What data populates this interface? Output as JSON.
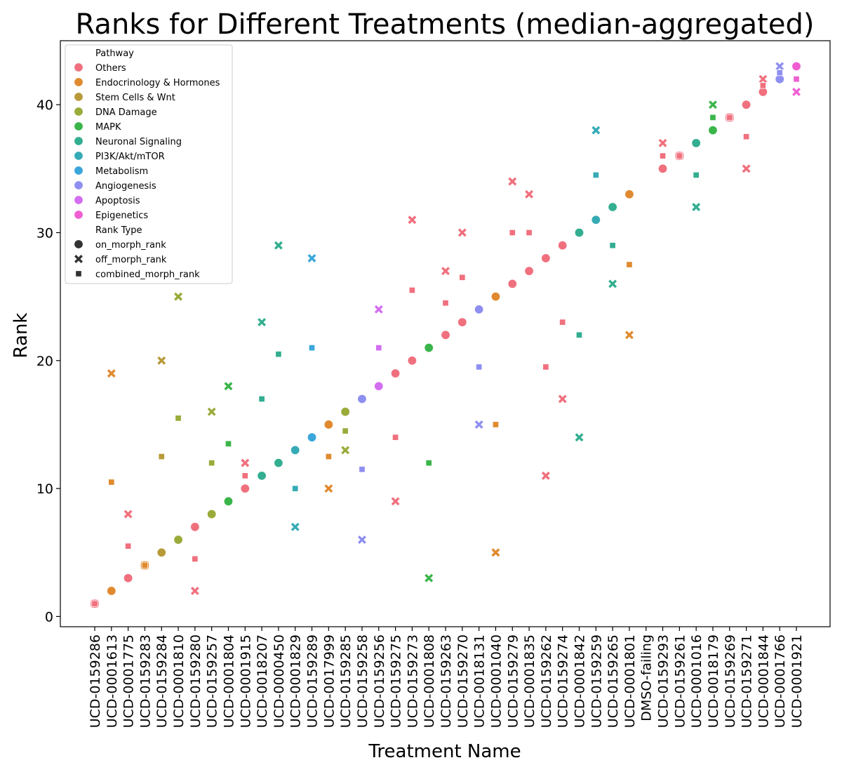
{
  "chart_data": {
    "type": "scatter",
    "title": "Ranks for Different Treatments (median-aggregated)",
    "xlabel": "Treatment Name",
    "ylabel": "Rank",
    "ylim": [
      -0.8,
      45
    ],
    "yticks": [
      0,
      10,
      20,
      30,
      40
    ],
    "grid": false,
    "legend_position": "top-left",
    "categories": [
      "UCD-0159286",
      "UCD-0001613",
      "UCD-0001775",
      "UCD-0159283",
      "UCD-0159284",
      "UCD-0001810",
      "UCD-0159280",
      "UCD-0159257",
      "UCD-0001804",
      "UCD-0001915",
      "UCD-0018207",
      "UCD-0000450",
      "UCD-0001829",
      "UCD-0159289",
      "UCD-0017999",
      "UCD-0159285",
      "UCD-0159258",
      "UCD-0159256",
      "UCD-0159275",
      "UCD-0159273",
      "UCD-0001808",
      "UCD-0159263",
      "UCD-0159270",
      "UCD-0018131",
      "UCD-0001040",
      "UCD-0159279",
      "UCD-0001835",
      "UCD-0159262",
      "UCD-0159274",
      "UCD-0001842",
      "UCD-0159259",
      "UCD-0159265",
      "UCD-0001801",
      "DMSO-failing",
      "UCD-0159293",
      "UCD-0159261",
      "UCD-0001016",
      "UCD-0018179",
      "UCD-0159269",
      "UCD-0159271",
      "UCD-0001844",
      "UCD-0001766",
      "UCD-0001921"
    ],
    "legend": {
      "hue_title": "Pathway",
      "style_title": "Rank Type",
      "pathways": [
        {
          "name": "Others",
          "color": "#f0707e"
        },
        {
          "name": "Endocrinology & Hormones",
          "color": "#e08a2f"
        },
        {
          "name": "Stem Cells &  Wnt",
          "color": "#b89a3a"
        },
        {
          "name": "DNA Damage",
          "color": "#9aab3a"
        },
        {
          "name": "MAPK",
          "color": "#3ab54a"
        },
        {
          "name": "Neuronal Signaling",
          "color": "#33ae90"
        },
        {
          "name": "PI3K/Akt/mTOR",
          "color": "#36abb5"
        },
        {
          "name": "Metabolism",
          "color": "#3aa6da"
        },
        {
          "name": "Angiogenesis",
          "color": "#8e8ff0"
        },
        {
          "name": "Apoptosis",
          "color": "#d36ef0"
        },
        {
          "name": "Epigenetics",
          "color": "#ef5fd2"
        }
      ],
      "rank_types": [
        {
          "name": "on_morph_rank",
          "marker": "circle"
        },
        {
          "name": "off_morph_rank",
          "marker": "x"
        },
        {
          "name": "combined_morph_rank",
          "marker": "square"
        }
      ]
    },
    "points": [
      {
        "cat": "UCD-0159286",
        "pathway": "Others",
        "on": 1,
        "off": 1,
        "combined": 1
      },
      {
        "cat": "UCD-0001613",
        "pathway": "Endocrinology & Hormones",
        "on": 2,
        "off": 19,
        "combined": 10.5
      },
      {
        "cat": "UCD-0001775",
        "pathway": "Others",
        "on": 3,
        "off": 8,
        "combined": 5.5
      },
      {
        "cat": "UCD-0159283",
        "pathway": "Endocrinology & Hormones",
        "on": 4,
        "off": 4,
        "combined": 4
      },
      {
        "cat": "UCD-0159284",
        "pathway": "Stem Cells &  Wnt",
        "on": 5,
        "off": 20,
        "combined": 12.5
      },
      {
        "cat": "UCD-0001810",
        "pathway": "DNA Damage",
        "on": 6,
        "off": 25,
        "combined": 15.5
      },
      {
        "cat": "UCD-0159280",
        "pathway": "Others",
        "on": 7,
        "off": 2,
        "combined": 4.5
      },
      {
        "cat": "UCD-0159257",
        "pathway": "DNA Damage",
        "on": 8,
        "off": 16,
        "combined": 12
      },
      {
        "cat": "UCD-0001804",
        "pathway": "MAPK",
        "on": 9,
        "off": 18,
        "combined": 13.5
      },
      {
        "cat": "UCD-0001915",
        "pathway": "Others",
        "on": 10,
        "off": 12,
        "combined": 11
      },
      {
        "cat": "UCD-0018207",
        "pathway": "Neuronal Signaling",
        "on": 11,
        "off": 23,
        "combined": 17
      },
      {
        "cat": "UCD-0000450",
        "pathway": "Neuronal Signaling",
        "on": 12,
        "off": 29,
        "combined": 20.5
      },
      {
        "cat": "UCD-0001829",
        "pathway": "PI3K/Akt/mTOR",
        "on": 13,
        "off": 7,
        "combined": 10
      },
      {
        "cat": "UCD-0159289",
        "pathway": "Metabolism",
        "on": 14,
        "off": 28,
        "combined": 21
      },
      {
        "cat": "UCD-0017999",
        "pathway": "Endocrinology & Hormones",
        "on": 15,
        "off": 10,
        "combined": 12.5
      },
      {
        "cat": "UCD-0159285",
        "pathway": "DNA Damage",
        "on": 16,
        "off": 13,
        "combined": 14.5
      },
      {
        "cat": "UCD-0159258",
        "pathway": "Angiogenesis",
        "on": 17,
        "off": 6,
        "combined": 11.5
      },
      {
        "cat": "UCD-0159256",
        "pathway": "Apoptosis",
        "on": 18,
        "off": 24,
        "combined": 21
      },
      {
        "cat": "UCD-0159275",
        "pathway": "Others",
        "on": 19,
        "off": 9,
        "combined": 14
      },
      {
        "cat": "UCD-0159273",
        "pathway": "Others",
        "on": 20,
        "off": 31,
        "combined": 25.5
      },
      {
        "cat": "UCD-0001808",
        "pathway": "MAPK",
        "on": 21,
        "off": 3,
        "combined": 12
      },
      {
        "cat": "UCD-0159263",
        "pathway": "Others",
        "on": 22,
        "off": 27,
        "combined": 24.5
      },
      {
        "cat": "UCD-0159270",
        "pathway": "Others",
        "on": 23,
        "off": 30,
        "combined": 26.5
      },
      {
        "cat": "UCD-0018131",
        "pathway": "Angiogenesis",
        "on": 24,
        "off": 15,
        "combined": 19.5
      },
      {
        "cat": "UCD-0001040",
        "pathway": "Endocrinology & Hormones",
        "on": 25,
        "off": 5,
        "combined": 15
      },
      {
        "cat": "UCD-0159279",
        "pathway": "Others",
        "on": 26,
        "off": 34,
        "combined": 30
      },
      {
        "cat": "UCD-0001835",
        "pathway": "Others",
        "on": 27,
        "off": 33,
        "combined": 30
      },
      {
        "cat": "UCD-0159262",
        "pathway": "Others",
        "on": 28,
        "off": 11,
        "combined": 19.5
      },
      {
        "cat": "UCD-0159274",
        "pathway": "Others",
        "on": 29,
        "off": 17,
        "combined": 23
      },
      {
        "cat": "UCD-0001842",
        "pathway": "Neuronal Signaling",
        "on": 30,
        "off": 14,
        "combined": 22
      },
      {
        "cat": "UCD-0159259",
        "pathway": "PI3K/Akt/mTOR",
        "on": 31,
        "off": 38,
        "combined": 34.5
      },
      {
        "cat": "UCD-0159265",
        "pathway": "Neuronal Signaling",
        "on": 32,
        "off": 26,
        "combined": 29
      },
      {
        "cat": "UCD-0001801",
        "pathway": "Endocrinology & Hormones",
        "on": 33,
        "off": 22,
        "combined": 27.5
      },
      {
        "cat": "UCD-0159293",
        "pathway": "Others",
        "on": 35,
        "off": 37,
        "combined": 36
      },
      {
        "cat": "UCD-0159261",
        "pathway": "Others",
        "on": 36,
        "off": 36,
        "combined": 36
      },
      {
        "cat": "UCD-0001016",
        "pathway": "Neuronal Signaling",
        "on": 37,
        "off": 32,
        "combined": 34.5
      },
      {
        "cat": "UCD-0018179",
        "pathway": "MAPK",
        "on": 38,
        "off": 40,
        "combined": 39
      },
      {
        "cat": "UCD-0159269",
        "pathway": "Others",
        "on": 39,
        "off": 39,
        "combined": 39
      },
      {
        "cat": "UCD-0159271",
        "pathway": "Others",
        "on": 40,
        "off": 35,
        "combined": 37.5
      },
      {
        "cat": "UCD-0001844",
        "pathway": "Others",
        "on": 41,
        "off": 42,
        "combined": 41.5
      },
      {
        "cat": "UCD-0001766",
        "pathway": "Angiogenesis",
        "on": 42,
        "off": 43,
        "combined": 42.5
      },
      {
        "cat": "UCD-0001921",
        "pathway": "Epigenetics",
        "on": 43,
        "off": 41,
        "combined": 42
      }
    ]
  }
}
